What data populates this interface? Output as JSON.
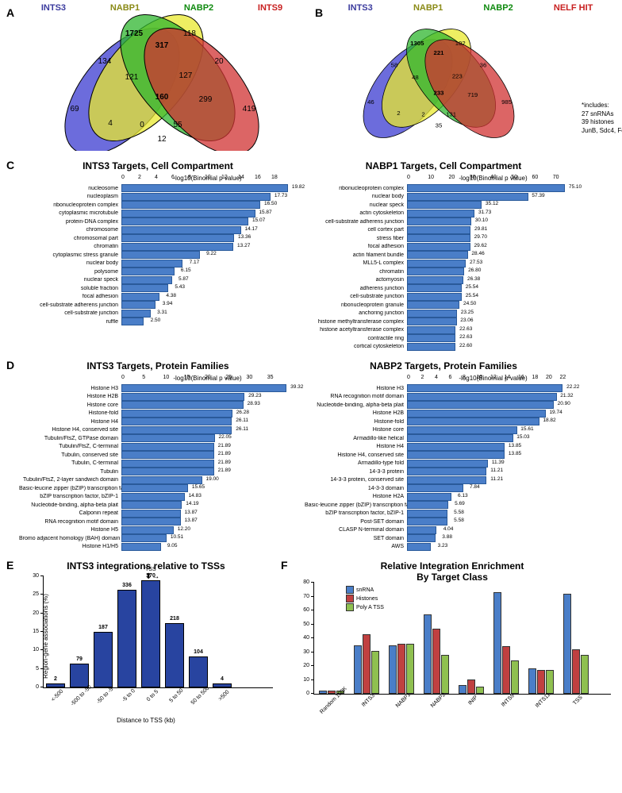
{
  "panelA": {
    "labels": [
      "INTS3",
      "NABP1",
      "NABP2",
      "INTS9"
    ],
    "ellipse_fills": [
      "#3b3bd0",
      "#e8e82e",
      "#2fb52f",
      "#d03232"
    ],
    "text": {
      "e1": "69",
      "e2": "1725",
      "e3": "118",
      "e4": "419",
      "i12": "134",
      "i23": "317",
      "i34": "20",
      "i13": "4",
      "i24": "299",
      "i14": "12",
      "i123": "121",
      "i234": "127",
      "i134": "0",
      "i124": "55",
      "all": "160"
    }
  },
  "panelB": {
    "labels": [
      "INTS3",
      "NABP1",
      "NABP2",
      "NELF HIT"
    ],
    "ellipse_fills": [
      "#3b3bd0",
      "#e8e82e",
      "#2fb52f",
      "#d03232"
    ],
    "text": {
      "e1": "46",
      "e2": "1305",
      "e3": "102",
      "e4": "985",
      "i12": "58",
      "i23": "221",
      "i34": "36",
      "i13": "2",
      "i24": "719",
      "i14": "35",
      "i123": "48",
      "i234": "223",
      "i134": "2",
      "i124": "131",
      "all": "233"
    },
    "note_title": "*includes:",
    "note_lines": [
      "27 snRNAs",
      "39 histones",
      "JunB, Sdc4, Fosl1, Gadd45b"
    ]
  },
  "panelC": {
    "left": {
      "title": "INTS3 Targets, Cell Compartment",
      "axis": "-log10(Binomial p value)",
      "xmax": 20,
      "ticks": [
        0,
        2,
        4,
        6,
        8,
        10,
        12,
        14,
        16,
        18
      ],
      "bar_color": "#4a7ec8",
      "rows": [
        {
          "label": "nucleosome",
          "val": 19.82
        },
        {
          "label": "nucleoplasm",
          "val": 17.73
        },
        {
          "label": "ribonucleoprotein complex",
          "val": 16.5
        },
        {
          "label": "cytoplasmic microtubule",
          "val": 15.87
        },
        {
          "label": "protein-DNA complex",
          "val": 15.07
        },
        {
          "label": "chromosome",
          "val": 14.17
        },
        {
          "label": "chromosomal part",
          "val": 13.36
        },
        {
          "label": "chromatin",
          "val": 13.27
        },
        {
          "label": "cytoplasmic stress granule",
          "val": 9.22
        },
        {
          "label": "nuclear body",
          "val": 7.17
        },
        {
          "label": "polysome",
          "val": 6.15
        },
        {
          "label": "nuclear speck",
          "val": 5.87
        },
        {
          "label": "soluble fraction",
          "val": 5.43
        },
        {
          "label": "focal adhesion",
          "val": 4.38
        },
        {
          "label": "cell-substrate adherens junction",
          "val": 3.94
        },
        {
          "label": "cell-substrate junction",
          "val": 3.31
        },
        {
          "label": "ruffle",
          "val": 2.5
        }
      ]
    },
    "right": {
      "title": "NABP1 Targets, Cell Compartment",
      "axis": "-log10(Binomial p value)",
      "xmax": 80,
      "ticks": [
        0,
        10,
        20,
        30,
        40,
        50,
        60,
        70
      ],
      "bar_color": "#4a7ec8",
      "rows": [
        {
          "label": "ribonucleoprotein complex",
          "val": 75.1
        },
        {
          "label": "nuclear body",
          "val": 57.39
        },
        {
          "label": "nuclear speck",
          "val": 35.12
        },
        {
          "label": "actin cytoskeleton",
          "val": 31.73
        },
        {
          "label": "cell-substrate adherens junction",
          "val": 30.1
        },
        {
          "label": "cell cortex part",
          "val": 29.81
        },
        {
          "label": "stress fiber",
          "val": 29.7
        },
        {
          "label": "focal adhesion",
          "val": 29.62
        },
        {
          "label": "actin filament bundle",
          "val": 28.46
        },
        {
          "label": "MLL5-L complex",
          "val": 27.53
        },
        {
          "label": "chromatin",
          "val": 26.8
        },
        {
          "label": "actomyosin",
          "val": 26.38
        },
        {
          "label": "adherens junction",
          "val": 25.54
        },
        {
          "label": "cell-substrate junction",
          "val": 25.54
        },
        {
          "label": "ribonucleoprotein granule",
          "val": 24.5
        },
        {
          "label": "anchoring junction",
          "val": 23.25
        },
        {
          "label": "histone methyltransferase complex",
          "val": 23.06
        },
        {
          "label": "histone acetyltransferase complex",
          "val": 22.63
        },
        {
          "label": "contractile ring",
          "val": 22.63
        },
        {
          "label": "cortical cytoskeleton",
          "val": 22.6
        }
      ]
    }
  },
  "panelD": {
    "left": {
      "title": "INTS3 Targets, Protein Families",
      "axis": "-log10(Binomial p value)",
      "xmax": 40,
      "ticks": [
        0,
        5,
        10,
        15,
        20,
        25,
        30,
        35
      ],
      "bar_color": "#4a7ec8",
      "rows": [
        {
          "label": "Histone H3",
          "val": 39.32
        },
        {
          "label": "Histone H2B",
          "val": 29.23
        },
        {
          "label": "Histone core",
          "val": 28.93
        },
        {
          "label": "Histone-fold",
          "val": 26.28
        },
        {
          "label": "Histone H4",
          "val": 26.11
        },
        {
          "label": "Histone H4, conserved site",
          "val": 26.11
        },
        {
          "label": "Tubulin/FtsZ, GTPase domain",
          "val": 22.05
        },
        {
          "label": "Tubulin/FtsZ, C-terminal",
          "val": 21.89
        },
        {
          "label": "Tubulin, conserved site",
          "val": 21.89
        },
        {
          "label": "Tubulin, C-terminal",
          "val": 21.89
        },
        {
          "label": "Tubulin",
          "val": 21.89
        },
        {
          "label": "Tubulin/FtsZ, 2-layer sandwich domain",
          "val": 19.0
        },
        {
          "label": "Basic-leucine zipper (bZIP) transcription factor",
          "val": 15.65
        },
        {
          "label": "bZIP transcription factor, bZIP-1",
          "val": 14.83
        },
        {
          "label": "Nucleotide-binding, alpha-beta plait",
          "val": 14.19
        },
        {
          "label": "Calponin repeat",
          "val": 13.87
        },
        {
          "label": "RNA recognition motif domain",
          "val": 13.87
        },
        {
          "label": "Histone H5",
          "val": 12.2
        },
        {
          "label": "Bromo adjacent homology (BAH) domain",
          "val": 10.51
        },
        {
          "label": "Histone H1/H5",
          "val": 9.05
        }
      ]
    },
    "right": {
      "title": "NABP2 Targets, Protein Families",
      "axis": "-log10(Binomial p value)",
      "xmax": 24,
      "ticks": [
        0,
        2,
        4,
        6,
        8,
        10,
        12,
        14,
        16,
        18,
        20,
        22
      ],
      "bar_color": "#4a7ec8",
      "rows": [
        {
          "label": "Histone H3",
          "val": 22.22
        },
        {
          "label": "RNA recognition motif domain",
          "val": 21.32
        },
        {
          "label": "Nucleotide-binding, alpha-beta plait",
          "val": 20.9
        },
        {
          "label": "Histone H2B",
          "val": 19.74
        },
        {
          "label": "Histone-fold",
          "val": 18.82
        },
        {
          "label": "Histone core",
          "val": 15.61
        },
        {
          "label": "Armadillo-like helical",
          "val": 15.03
        },
        {
          "label": "Histone H4",
          "val": 13.85
        },
        {
          "label": "Histone H4, conserved site",
          "val": 13.85
        },
        {
          "label": "Armadillo-type fold",
          "val": 11.39
        },
        {
          "label": "14-3-3 protein",
          "val": 11.21
        },
        {
          "label": "14-3-3 protein, conserved site",
          "val": 11.21
        },
        {
          "label": "14-3-3 domain",
          "val": 7.84
        },
        {
          "label": "Histone H2A",
          "val": 6.13
        },
        {
          "label": "Basic-leucine zipper (bZIP) transcription factor",
          "val": 5.69
        },
        {
          "label": "bZIP transcription factor, bZIP-1",
          "val": 5.58
        },
        {
          "label": "Post-SET domain",
          "val": 5.58
        },
        {
          "label": "CLASP N-terminal domain",
          "val": 4.04
        },
        {
          "label": "SET domain",
          "val": 3.88
        },
        {
          "label": "AWS",
          "val": 3.23
        }
      ]
    }
  },
  "panelE": {
    "title": "INTS3 integrations relative to TSSs",
    "ylabel": "Region-gene associations (%)",
    "xlabel": "Distance to TSS (kb)",
    "ymax": 30,
    "yticks": [
      0,
      5,
      10,
      15,
      20,
      25,
      30
    ],
    "bar_color": "#2844a0",
    "tss_label": "TSS",
    "bars": [
      {
        "label": "<-500",
        "val": 2,
        "pct": 0.7
      },
      {
        "label": "-500 to -50",
        "val": 79,
        "pct": 6
      },
      {
        "label": "-50 to -5",
        "val": 187,
        "pct": 14.5
      },
      {
        "label": "-5 to 0",
        "val": 336,
        "pct": 26
      },
      {
        "label": "0 to 5",
        "val": 370,
        "pct": 28.5
      },
      {
        "label": "5 to 50",
        "val": 218,
        "pct": 17
      },
      {
        "label": "50 to 500",
        "val": 104,
        "pct": 8
      },
      {
        "label": ">500",
        "val": 4,
        "pct": 0.6
      }
    ]
  },
  "panelF": {
    "title": "Relative Integration Enrichment\nBy Target Class",
    "ymax": 80,
    "yticks": [
      0,
      10,
      20,
      30,
      40,
      50,
      60,
      70,
      80
    ],
    "legend": [
      {
        "name": "snRNA",
        "color": "#4a7ec8"
      },
      {
        "name": "Histones",
        "color": "#c04040"
      },
      {
        "name": "Poly A TSS",
        "color": "#8fc050"
      }
    ],
    "groups": [
      {
        "label": "Random 100K",
        "vals": [
          1,
          1,
          1
        ]
      },
      {
        "label": "INTS3",
        "vals": [
          34,
          42,
          30
        ]
      },
      {
        "label": "NABP1",
        "vals": [
          34,
          35,
          35
        ]
      },
      {
        "label": "NABP2",
        "vals": [
          56,
          46,
          27
        ]
      },
      {
        "label": "INIP",
        "vals": [
          5,
          9,
          4
        ]
      },
      {
        "label": "INTS9",
        "vals": [
          72,
          33,
          23
        ]
      },
      {
        "label": "INTS11",
        "vals": [
          17,
          16,
          16
        ]
      },
      {
        "label": "TSS",
        "vals": [
          71,
          31,
          27
        ]
      }
    ]
  }
}
